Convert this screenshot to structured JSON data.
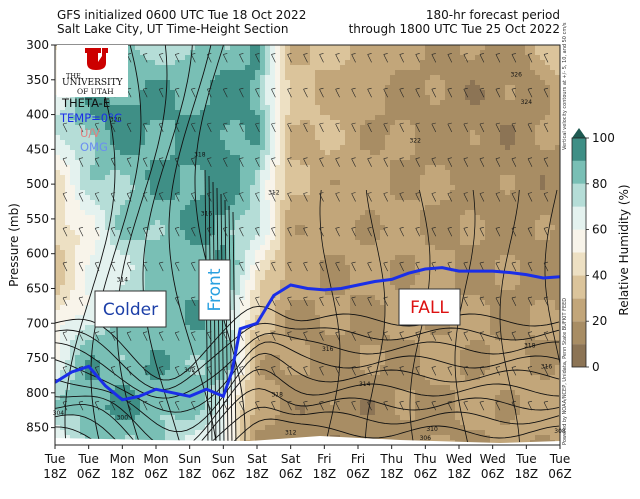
{
  "header": {
    "left_line1": "GFS initialized 0600 UTC Tue 18 Oct 2022",
    "left_line2": "Salt Lake City, UT Time-Height Section",
    "right_line1": "180-hr forecast period",
    "right_line2": "through 1800 UTC Tue 25 Oct 2022"
  },
  "logo": {
    "line1": "THE",
    "line2": "UNIVERSITY",
    "line3": "OF UTAH"
  },
  "key": {
    "theta_e": "THETA-E",
    "temp": "TEMP=0°C",
    "uv": "U/V",
    "omega": "OMG"
  },
  "side_note": "Vertical velocity contours at +/- 5, 10, and 50 cm/s",
  "credits": "Powered by NOAA/NCEP, Unidata, Penn State BUFKIT FEED",
  "annotations": {
    "colder": "Colder",
    "front": "Front",
    "fall": "FALL"
  },
  "colors": {
    "freezing_line": "#1a2ee8",
    "colder_text": "#1c3fa8",
    "front_text": "#29a0e0",
    "fall_text": "#dd1111"
  },
  "chart_data": {
    "type": "heatmap",
    "ylabel": "Pressure (mb)",
    "y_ticks": [
      300,
      350,
      400,
      450,
      500,
      550,
      600,
      650,
      700,
      750,
      800,
      850
    ],
    "ylim": [
      300,
      875
    ],
    "x_labels": [
      [
        "Tue",
        "18Z"
      ],
      [
        "Tue",
        "06Z"
      ],
      [
        "Mon",
        "18Z"
      ],
      [
        "Mon",
        "06Z"
      ],
      [
        "Sun",
        "18Z"
      ],
      [
        "Sun",
        "06Z"
      ],
      [
        "Sat",
        "18Z"
      ],
      [
        "Sat",
        "06Z"
      ],
      [
        "Fri",
        "18Z"
      ],
      [
        "Fri",
        "06Z"
      ],
      [
        "Thu",
        "18Z"
      ],
      [
        "Thu",
        "06Z"
      ],
      [
        "Wed",
        "18Z"
      ],
      [
        "Wed",
        "06Z"
      ],
      [
        "Tue",
        "18Z"
      ],
      [
        "Tue",
        "06Z"
      ]
    ],
    "colorbar": {
      "label": "Relative Humidity (%)",
      "ticks": [
        0,
        20,
        40,
        60,
        80,
        100
      ],
      "bands": [
        {
          "from": 0,
          "to": 10,
          "color": "#8c7455"
        },
        {
          "from": 10,
          "to": 20,
          "color": "#a88d64"
        },
        {
          "from": 20,
          "to": 30,
          "color": "#c2a67a"
        },
        {
          "from": 30,
          "to": 40,
          "color": "#dbc49b"
        },
        {
          "from": 40,
          "to": 50,
          "color": "#ede0c3"
        },
        {
          "from": 50,
          "to": 60,
          "color": "#f8f4ea"
        },
        {
          "from": 60,
          "to": 70,
          "color": "#e4f2ef"
        },
        {
          "from": 70,
          "to": 80,
          "color": "#b5ddd7"
        },
        {
          "from": 80,
          "to": 90,
          "color": "#79bfb5"
        },
        {
          "from": 90,
          "to": 100,
          "color": "#3f8f86"
        }
      ]
    },
    "freezing_level_series": {
      "x": [
        0,
        0.5,
        1,
        1.5,
        2,
        2.5,
        3,
        3.5,
        4,
        4.5,
        5,
        5.25,
        5.5,
        6,
        6.5,
        7,
        7.5,
        8,
        8.5,
        9,
        9.5,
        10,
        10.5,
        11,
        11.5,
        12,
        12.5,
        13,
        13.5,
        14,
        14.5,
        15
      ],
      "y": [
        785,
        770,
        762,
        790,
        810,
        805,
        795,
        800,
        805,
        795,
        805,
        770,
        708,
        700,
        660,
        645,
        650,
        652,
        650,
        645,
        640,
        637,
        628,
        622,
        620,
        625,
        625,
        625,
        627,
        630,
        635,
        633
      ]
    },
    "theta_labels": [
      {
        "text": "326",
        "x": 13.7,
        "y": 345
      },
      {
        "text": "324",
        "x": 14.0,
        "y": 385
      },
      {
        "text": "322",
        "x": 10.7,
        "y": 440
      },
      {
        "text": "320",
        "x": 1.8,
        "y": 410
      },
      {
        "text": "318",
        "x": 4.3,
        "y": 460
      },
      {
        "text": "316",
        "x": 4.5,
        "y": 545
      },
      {
        "text": "314",
        "x": 2.0,
        "y": 640
      },
      {
        "text": "312",
        "x": 6.5,
        "y": 515
      },
      {
        "text": "318",
        "x": 6.6,
        "y": 805
      },
      {
        "text": "318",
        "x": 14.1,
        "y": 735
      },
      {
        "text": "316",
        "x": 14.6,
        "y": 765
      },
      {
        "text": "316",
        "x": 8.1,
        "y": 740
      },
      {
        "text": "314",
        "x": 9.2,
        "y": 790
      },
      {
        "text": "310",
        "x": 11.2,
        "y": 855
      },
      {
        "text": "308",
        "x": 15.0,
        "y": 858
      },
      {
        "text": "306",
        "x": 11.0,
        "y": 868
      },
      {
        "text": "304",
        "x": 0.1,
        "y": 832
      },
      {
        "text": "300",
        "x": 2.0,
        "y": 838
      },
      {
        "text": "302",
        "x": 4.0,
        "y": 770
      },
      {
        "text": "312",
        "x": 7.0,
        "y": 860
      }
    ],
    "rh_field": [
      [
        40,
        55,
        75,
        78,
        72,
        85,
        88,
        30,
        35,
        30,
        25,
        22,
        18,
        15,
        20,
        40
      ],
      [
        60,
        82,
        90,
        88,
        85,
        92,
        92,
        32,
        28,
        25,
        20,
        18,
        15,
        14,
        16,
        30
      ],
      [
        70,
        90,
        95,
        92,
        90,
        94,
        90,
        35,
        30,
        24,
        18,
        16,
        14,
        13,
        15,
        22
      ],
      [
        55,
        80,
        88,
        90,
        92,
        95,
        86,
        30,
        28,
        24,
        20,
        18,
        16,
        15,
        14,
        18
      ],
      [
        45,
        70,
        82,
        88,
        92,
        95,
        80,
        28,
        26,
        24,
        22,
        20,
        18,
        16,
        15,
        16
      ],
      [
        40,
        60,
        78,
        85,
        88,
        92,
        70,
        26,
        24,
        22,
        22,
        20,
        18,
        16,
        16,
        16
      ],
      [
        35,
        55,
        70,
        82,
        86,
        90,
        58,
        24,
        22,
        22,
        22,
        22,
        20,
        18,
        17,
        17
      ],
      [
        40,
        62,
        75,
        85,
        88,
        90,
        40,
        22,
        20,
        20,
        22,
        22,
        20,
        18,
        18,
        18
      ],
      [
        55,
        80,
        82,
        86,
        86,
        88,
        30,
        20,
        18,
        18,
        20,
        22,
        22,
        20,
        19,
        20
      ],
      [
        70,
        88,
        88,
        88,
        84,
        82,
        25,
        18,
        16,
        16,
        18,
        20,
        22,
        22,
        22,
        22
      ],
      [
        75,
        90,
        90,
        88,
        80,
        70,
        22,
        16,
        14,
        14,
        16,
        18,
        20,
        22,
        24,
        24
      ],
      [
        60,
        78,
        82,
        78,
        70,
        55,
        20,
        15,
        13,
        13,
        15,
        17,
        19,
        21,
        22,
        22
      ]
    ]
  }
}
